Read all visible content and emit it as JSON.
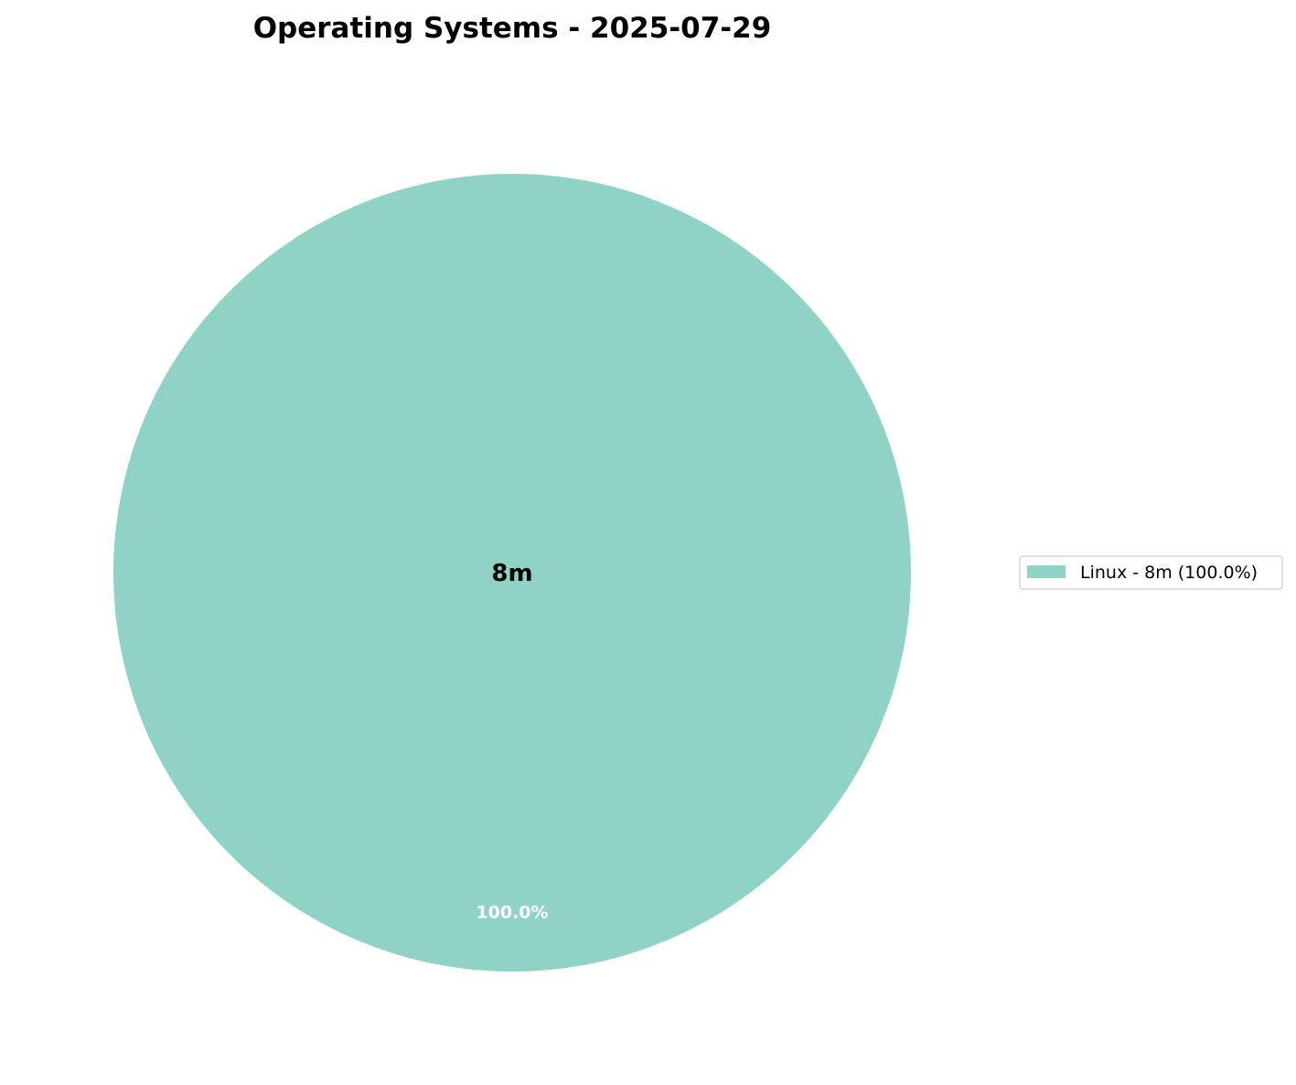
{
  "chart_data": {
    "type": "pie",
    "title": "Operating Systems - 2025-07-29",
    "center_label": "8m",
    "slices": [
      {
        "label": "Linux",
        "value": 8,
        "value_label": "8m",
        "percent": 100.0,
        "percent_label": "100.0%",
        "legend_label": "Linux - 8m (100.0%)",
        "color": "#8fd3c7"
      }
    ],
    "legend_placement": "center-right"
  }
}
